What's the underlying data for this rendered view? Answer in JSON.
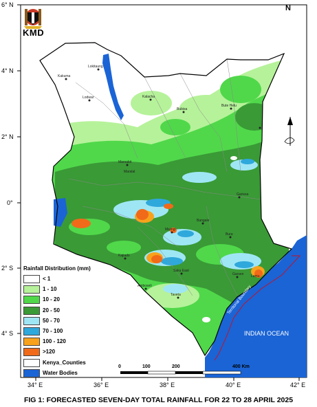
{
  "logo": {
    "text": "KMD"
  },
  "latitude_labels": [
    "6° N",
    "4° N",
    "2° N",
    "0°",
    "2° S",
    "4° S"
  ],
  "longitude_labels": [
    "34° E",
    "36° E",
    "38° E",
    "40° E",
    "42° E"
  ],
  "towns": [
    "Lokitaung",
    "Kakuma",
    "Lodwar",
    "Kalacha",
    "Bubisa",
    "Bute Helu",
    "Marsabit",
    "Maralal",
    "Garissa",
    "Bangale",
    "Mwingi",
    "Kajiado",
    "Amboseli",
    "Lamu",
    "Garsen",
    "Saku East",
    "Bura",
    "Taveta"
  ],
  "legend": {
    "title": "Rainfall Distribution (mm)",
    "items": [
      {
        "label": "< 1",
        "color": "#ffffff"
      },
      {
        "label": "1 - 10",
        "color": "#b6f29a"
      },
      {
        "label": "10 - 20",
        "color": "#50d84a"
      },
      {
        "label": "20 - 50",
        "color": "#3a9a36"
      },
      {
        "label": "50 - 70",
        "color": "#9fe6f5"
      },
      {
        "label": "70 - 100",
        "color": "#2fa8dc"
      },
      {
        "label": "100 - 120",
        "color": "#f8a21c"
      },
      {
        "label": ">120",
        "color": "#f06a1a"
      },
      {
        "label": "Kenya_Counties",
        "color": "#ffffff"
      },
      {
        "label": "Water Bodies",
        "color": "#1a64d6"
      }
    ]
  },
  "scale_bar": {
    "ticks": [
      "0",
      "100",
      "200",
      "400 Km"
    ]
  },
  "ocean_label": "INDIAN OCEAN",
  "boundary_label": "Territorial Boundary",
  "north_arrow": "N",
  "caption": "FIG 1: FORECASTED SEVEN-DAY TOTAL RAINFALL FOR 22 TO 28 APRIL 2025"
}
